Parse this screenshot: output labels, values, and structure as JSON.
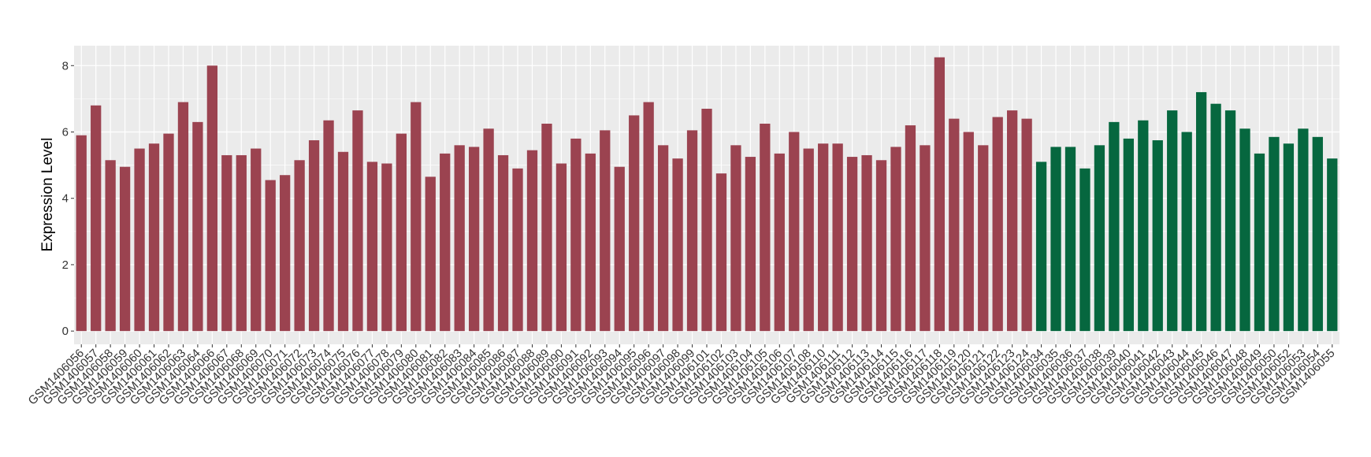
{
  "chart_data": {
    "type": "bar",
    "y_label": "Expression Level",
    "categories": [
      "GSM1406056",
      "GSM1406057",
      "GSM1406058",
      "GSM1406059",
      "GSM1406060",
      "GSM1406061",
      "GSM1406062",
      "GSM1406063",
      "GSM1406064",
      "GSM1406066",
      "GSM1406067",
      "GSM1406068",
      "GSM1406069",
      "GSM1406070",
      "GSM1406071",
      "GSM1406072",
      "GSM1406073",
      "GSM1406074",
      "GSM1406075",
      "GSM1406076",
      "GSM1406077",
      "GSM1406078",
      "GSM1406079",
      "GSM1406080",
      "GSM1406081",
      "GSM1406082",
      "GSM1406083",
      "GSM1406084",
      "GSM1406085",
      "GSM1406086",
      "GSM1406087",
      "GSM1406088",
      "GSM1406089",
      "GSM1406090",
      "GSM1406091",
      "GSM1406092",
      "GSM1406093",
      "GSM1406094",
      "GSM1406095",
      "GSM1406096",
      "GSM1406097",
      "GSM1406098",
      "GSM1406099",
      "GSM1406101",
      "GSM1406102",
      "GSM1406103",
      "GSM1406104",
      "GSM1406105",
      "GSM1406106",
      "GSM1406107",
      "GSM1406108",
      "GSM1406110",
      "GSM1406111",
      "GSM1406112",
      "GSM1406113",
      "GSM1406114",
      "GSM1406115",
      "GSM1406116",
      "GSM1406117",
      "GSM1406118",
      "GSM1406119",
      "GSM1406120",
      "GSM1406121",
      "GSM1406122",
      "GSM1406123",
      "GSM1406124",
      "GSM1406034",
      "GSM1406035",
      "GSM1406036",
      "GSM1406037",
      "GSM1406038",
      "GSM1406039",
      "GSM1406040",
      "GSM1406041",
      "GSM1406042",
      "GSM1406043",
      "GSM1406044",
      "GSM1406045",
      "GSM1406046",
      "GSM1406047",
      "GSM1406048",
      "GSM1406049",
      "GSM1406050",
      "GSM1406052",
      "GSM1406053",
      "GSM1406054",
      "GSM1406055"
    ],
    "values": [
      5.9,
      6.8,
      5.15,
      4.95,
      5.5,
      5.65,
      5.95,
      6.9,
      6.3,
      8.0,
      5.3,
      5.3,
      5.5,
      4.55,
      4.7,
      5.15,
      5.75,
      6.35,
      5.4,
      6.65,
      5.1,
      5.05,
      5.95,
      6.9,
      4.65,
      5.35,
      5.6,
      5.55,
      6.1,
      5.3,
      4.9,
      5.45,
      6.25,
      5.05,
      5.8,
      5.35,
      6.05,
      4.95,
      6.5,
      6.9,
      5.6,
      5.2,
      6.05,
      6.7,
      4.75,
      5.6,
      5.25,
      6.25,
      5.35,
      6.0,
      5.5,
      5.65,
      5.65,
      5.25,
      5.3,
      5.15,
      5.55,
      6.2,
      5.6,
      8.25,
      6.4,
      6.0,
      5.6,
      6.45,
      6.65,
      6.4,
      5.1,
      5.55,
      5.55,
      4.9,
      5.6,
      6.3,
      5.8,
      6.35,
      5.75,
      6.65,
      6.0,
      7.2,
      6.85,
      6.65,
      6.1,
      5.35,
      5.85,
      5.65,
      6.1,
      5.85,
      5.2
    ],
    "bar_colors": [
      "#9b4350",
      "#9b4350",
      "#9b4350",
      "#9b4350",
      "#9b4350",
      "#9b4350",
      "#9b4350",
      "#9b4350",
      "#9b4350",
      "#9b4350",
      "#9b4350",
      "#9b4350",
      "#9b4350",
      "#9b4350",
      "#9b4350",
      "#9b4350",
      "#9b4350",
      "#9b4350",
      "#9b4350",
      "#9b4350",
      "#9b4350",
      "#9b4350",
      "#9b4350",
      "#9b4350",
      "#9b4350",
      "#9b4350",
      "#9b4350",
      "#9b4350",
      "#9b4350",
      "#9b4350",
      "#9b4350",
      "#9b4350",
      "#9b4350",
      "#9b4350",
      "#9b4350",
      "#9b4350",
      "#9b4350",
      "#9b4350",
      "#9b4350",
      "#9b4350",
      "#9b4350",
      "#9b4350",
      "#9b4350",
      "#9b4350",
      "#9b4350",
      "#9b4350",
      "#9b4350",
      "#9b4350",
      "#9b4350",
      "#9b4350",
      "#9b4350",
      "#9b4350",
      "#9b4350",
      "#9b4350",
      "#9b4350",
      "#9b4350",
      "#9b4350",
      "#9b4350",
      "#9b4350",
      "#9b4350",
      "#9b4350",
      "#9b4350",
      "#9b4350",
      "#9b4350",
      "#9b4350",
      "#9b4350",
      "#06673f",
      "#06673f",
      "#06673f",
      "#06673f",
      "#06673f",
      "#06673f",
      "#06673f",
      "#06673f",
      "#06673f",
      "#06673f",
      "#06673f",
      "#06673f",
      "#06673f",
      "#06673f",
      "#06673f",
      "#06673f",
      "#06673f",
      "#06673f",
      "#06673f",
      "#06673f",
      "#06673f"
    ],
    "ylim": [
      -0.4,
      8.6
    ],
    "yticks": [
      0,
      2,
      4,
      6,
      8
    ],
    "grid": true,
    "background": "#ebebeb"
  }
}
